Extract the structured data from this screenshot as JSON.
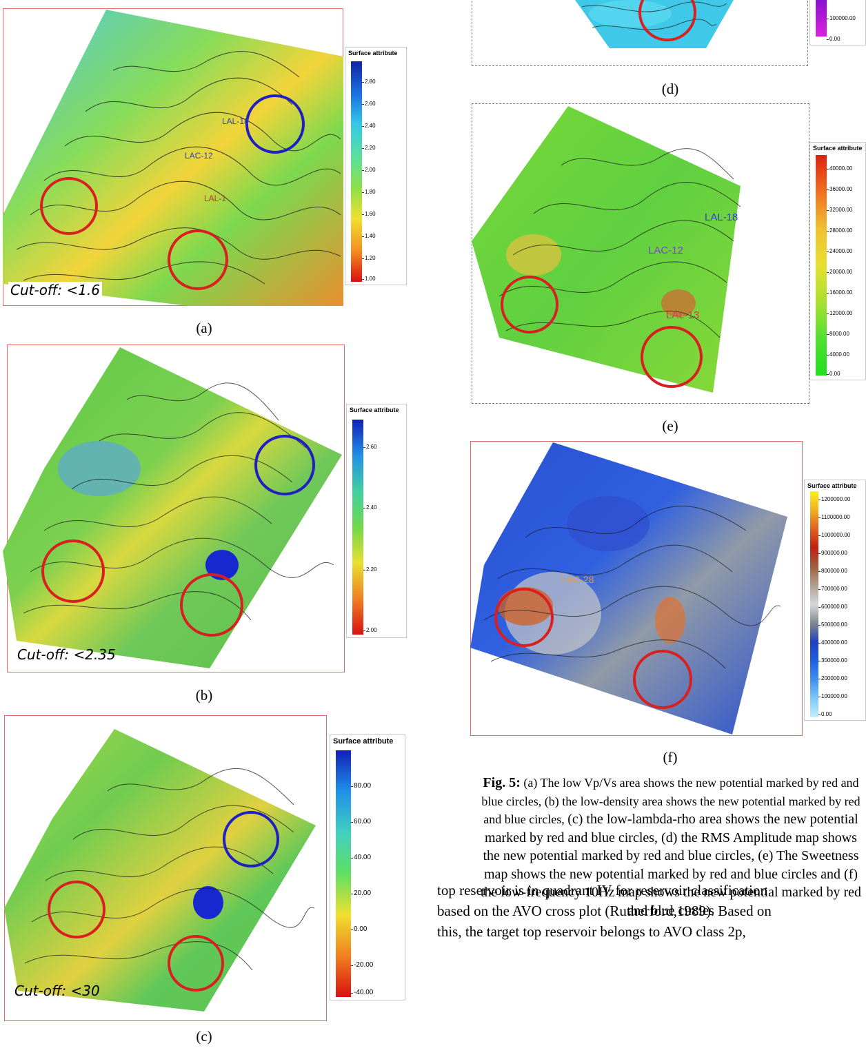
{
  "panels": {
    "a": {
      "label": "(a)",
      "cutoff": "Cut-off: <1.6",
      "colorbar": {
        "title": "Surface attribute",
        "ticks": [
          "2.80",
          "2.60",
          "2.40",
          "2.20",
          "2.00",
          "1.80",
          "1.60",
          "1.40",
          "1.20",
          "1.00"
        ],
        "colors": [
          "#1025a0",
          "#1a6fe0",
          "#36c8e8",
          "#58e0a0",
          "#8be04a",
          "#f0e030",
          "#f59020",
          "#d81010"
        ]
      },
      "wells": [
        "LAL-18",
        "LAC-12",
        "LAL-1"
      ]
    },
    "b": {
      "label": "(b)",
      "cutoff": "Cut-off: <2.35",
      "colorbar": {
        "title": "Surface attribute",
        "ticks": [
          "2.60",
          "2.40",
          "2.20",
          "2.00"
        ],
        "colors": [
          "#1020b8",
          "#2090e8",
          "#40d0a0",
          "#70d848",
          "#e8e030",
          "#f08020",
          "#d81010"
        ]
      }
    },
    "c": {
      "label": "(c)",
      "cutoff": "Cut-off: <30",
      "colorbar": {
        "title": "Surface attribute",
        "ticks": [
          "80.00",
          "60.00",
          "40.00",
          "20.00",
          "0.00",
          "-20.00",
          "-40.00"
        ],
        "colors": [
          "#1020b8",
          "#2090e8",
          "#40d0c0",
          "#60e060",
          "#f0e030",
          "#f08020",
          "#d81010"
        ]
      }
    },
    "d": {
      "label": "(d)",
      "colorbar": {
        "ticks": [
          "100000.00",
          "0.00"
        ],
        "colors": [
          "#8010d0",
          "#e020e0"
        ]
      }
    },
    "e": {
      "label": "(e)",
      "colorbar": {
        "title": "Surface attribute",
        "ticks": [
          "40000.00",
          "36000.00",
          "32000.00",
          "28000.00",
          "24000.00",
          "20000.00",
          "16000.00",
          "12000.00",
          "8000.00",
          "4000.00",
          "0.00"
        ],
        "colors": [
          "#e02010",
          "#f07020",
          "#f0c030",
          "#e8e030",
          "#a8e030",
          "#50e030",
          "#20e020"
        ]
      },
      "wells": [
        "LAL-18",
        "LAC-12",
        "LAL-13"
      ]
    },
    "f": {
      "label": "(f)",
      "colorbar": {
        "title": "Surface attribute",
        "ticks": [
          "1200000.00",
          "1100000.00",
          "1000000.00",
          "900000.00",
          "800000.00",
          "700000.00",
          "600000.00",
          "500000.00",
          "400000.00",
          "300000.00",
          "200000.00",
          "100000.00",
          "0.00"
        ],
        "colors": [
          "#f8f020",
          "#f0b020",
          "#e06020",
          "#c02010",
          "#a06040",
          "#b0a090",
          "#d8d8d8",
          "#808890",
          "#2040c0",
          "#2060e0",
          "#4090f0",
          "#80c8f8",
          "#c0f0ff"
        ]
      },
      "wells": [
        "LAC-28"
      ]
    }
  },
  "caption": {
    "bold": "Fig. 5:",
    "part_a": " (a) The low Vp/Vs area shows the new potential marked by red and blue circles, ",
    "part_b": "(b) the low-density area shows the new potential marked by red and blue circles, ",
    "part_c": "(c) the low-lambda-rho area shows the new potential marked by red and blue circles, (d) the RMS Amplitude map shows the new potential marked by red and blue circles, (e) The Sweetness map shows the new potential marked by red and blue circles and (f) the low-frequency 10Hz map shows the new potential marked by red and blue circles"
  },
  "body_text": {
    "line1": "top reservoir is in quadrant IV for reservoir classification",
    "line2": "based on the AVO cross plot (Rutherford,1989). Based on",
    "line3": "this, the target top reservoir belongs to AVO class 2p,"
  }
}
